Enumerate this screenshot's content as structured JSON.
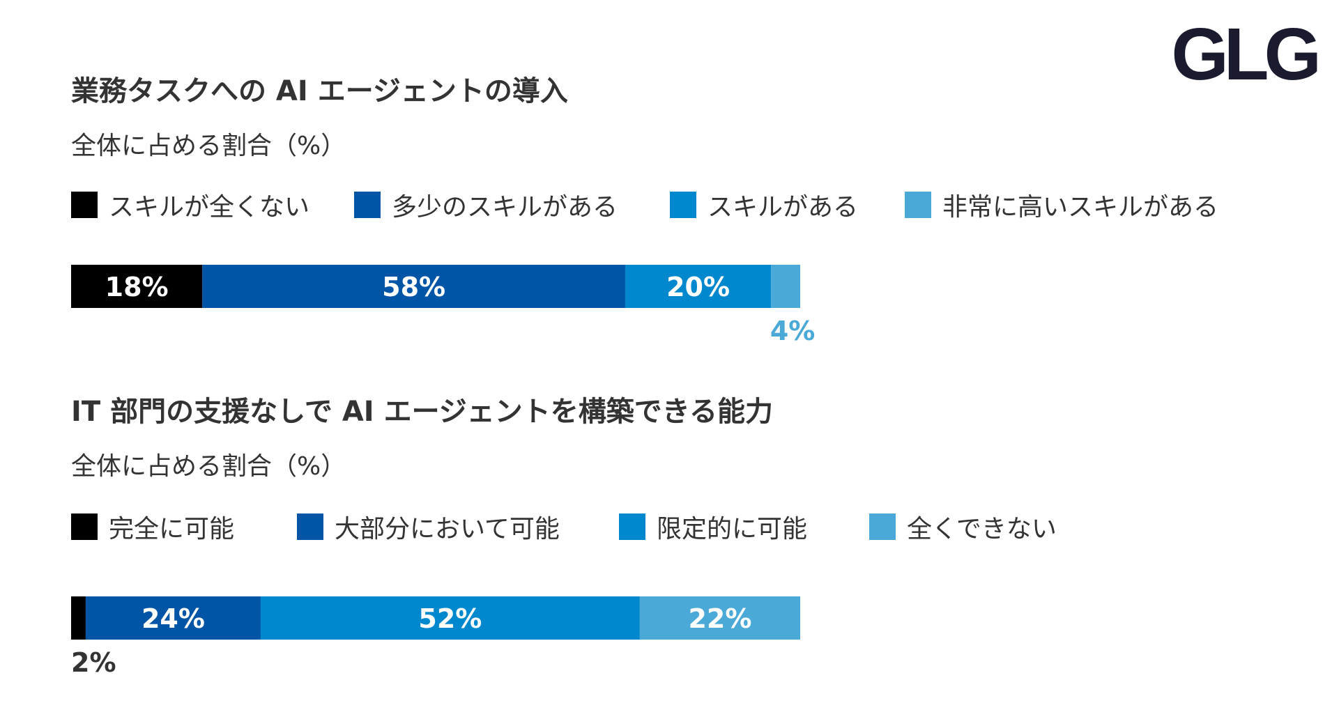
{
  "brand": {
    "logo_text": "GLG",
    "logo_color": "#1a1b2e"
  },
  "chart_data": [
    {
      "type": "bar",
      "orientation": "horizontal-stacked",
      "title": "業務タスクへの AI エージェントの導入",
      "subtitle": "全体に占める割合（%）",
      "categories": [
        ""
      ],
      "series": [
        {
          "name": "スキルが全くない",
          "values": [
            18
          ],
          "label": "18%",
          "color": "#000000",
          "label_color": "#ffffff",
          "label_position": "inside"
        },
        {
          "name": "多少のスキルがある",
          "values": [
            58
          ],
          "label": "58%",
          "color": "#0055a6",
          "label_color": "#ffffff",
          "label_position": "inside"
        },
        {
          "name": "スキルがある",
          "values": [
            20
          ],
          "label": "20%",
          "color": "#0088cf",
          "label_color": "#ffffff",
          "label_position": "inside"
        },
        {
          "name": "非常に高いスキルがある",
          "values": [
            4
          ],
          "label": "4%",
          "color": "#4aa9d6",
          "label_color": "#4aa9d6",
          "label_position": "below"
        }
      ],
      "xlim": [
        0,
        100
      ],
      "grid": false,
      "legend_position": "top"
    },
    {
      "type": "bar",
      "orientation": "horizontal-stacked",
      "title": "IT 部門の支援なしで AI エージェントを構築できる能力",
      "subtitle": "全体に占める割合（%）",
      "categories": [
        ""
      ],
      "series": [
        {
          "name": "完全に可能",
          "values": [
            2
          ],
          "label": "2%",
          "color": "#000000",
          "label_color": "#333333",
          "label_position": "below"
        },
        {
          "name": "大部分において可能",
          "values": [
            24
          ],
          "label": "24%",
          "color": "#0055a6",
          "label_color": "#ffffff",
          "label_position": "inside"
        },
        {
          "name": "限定的に可能",
          "values": [
            52
          ],
          "label": "52%",
          "color": "#0088cf",
          "label_color": "#ffffff",
          "label_position": "inside"
        },
        {
          "name": "全くできない",
          "values": [
            22
          ],
          "label": "22%",
          "color": "#4aa9d6",
          "label_color": "#ffffff",
          "label_position": "inside"
        }
      ],
      "xlim": [
        0,
        100
      ],
      "grid": false,
      "legend_position": "top"
    }
  ]
}
